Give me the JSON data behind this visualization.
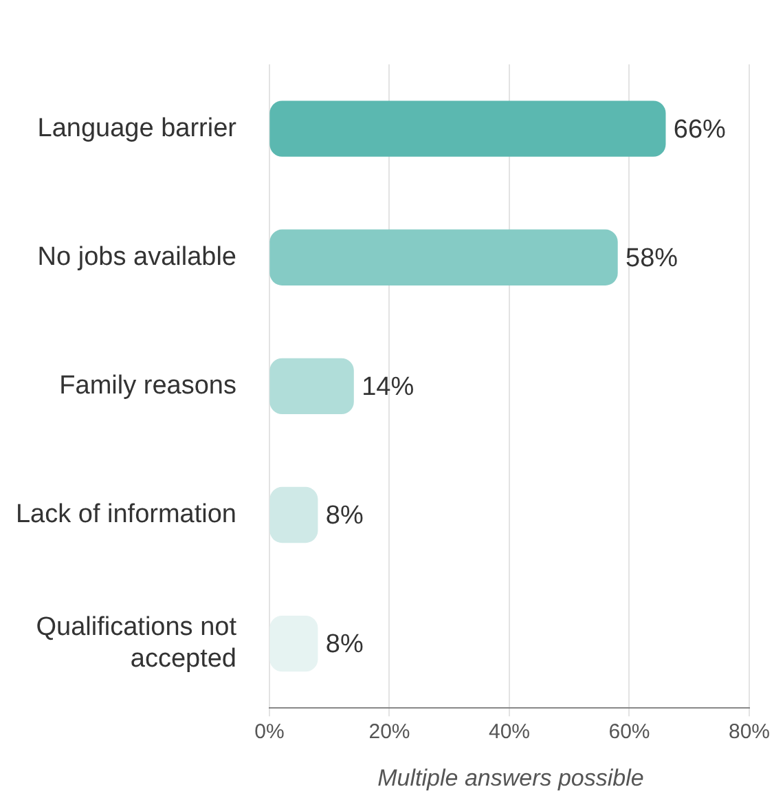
{
  "chart_data": {
    "type": "bar",
    "orientation": "horizontal",
    "categories": [
      "Language barrier",
      "No jobs available",
      "Family reasons",
      "Lack of information",
      "Qualifications not accepted"
    ],
    "values": [
      66,
      58,
      14,
      8,
      8
    ],
    "colors": [
      "#5bb8b0",
      "#85cbc5",
      "#b0ddd9",
      "#cfe9e7",
      "#e6f3f2"
    ],
    "value_labels": [
      "66%",
      "58%",
      "14%",
      "8%",
      "8%"
    ],
    "xlim": [
      0,
      80
    ],
    "xticks": [
      {
        "value": 0,
        "label": "0%"
      },
      {
        "value": 20,
        "label": "20%"
      },
      {
        "value": 40,
        "label": "40%"
      },
      {
        "value": 60,
        "label": "60%"
      },
      {
        "value": 80,
        "label": "80%"
      }
    ],
    "grid": "x",
    "legend": false,
    "annotations": [
      "Multiple answers possible"
    ]
  }
}
